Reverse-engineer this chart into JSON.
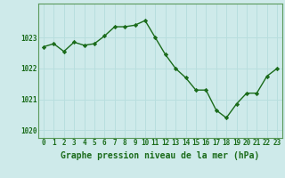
{
  "x": [
    0,
    1,
    2,
    3,
    4,
    5,
    6,
    7,
    8,
    9,
    10,
    11,
    12,
    13,
    14,
    15,
    16,
    17,
    18,
    19,
    20,
    21,
    22,
    23
  ],
  "y": [
    1022.7,
    1022.8,
    1022.55,
    1022.85,
    1022.75,
    1022.8,
    1023.05,
    1023.35,
    1023.35,
    1023.4,
    1023.55,
    1023.0,
    1022.45,
    1022.0,
    1021.7,
    1021.3,
    1021.3,
    1020.65,
    1020.4,
    1020.85,
    1021.2,
    1021.2,
    1021.75,
    1022.0
  ],
  "line_color": "#1a6b1a",
  "marker": "D",
  "marker_size": 2.2,
  "bg_color": "#ceeaea",
  "grid_color": "#b0d8d8",
  "xlabel": "Graphe pression niveau de la mer (hPa)",
  "xlabel_color": "#1a6b1a",
  "tick_color": "#1a6b1a",
  "ylim": [
    1019.75,
    1024.1
  ],
  "xlim": [
    -0.5,
    23.5
  ],
  "yticks": [
    1020,
    1021,
    1022,
    1023
  ],
  "xticks": [
    0,
    1,
    2,
    3,
    4,
    5,
    6,
    7,
    8,
    9,
    10,
    11,
    12,
    13,
    14,
    15,
    16,
    17,
    18,
    19,
    20,
    21,
    22,
    23
  ],
  "xtick_labels": [
    "0",
    "1",
    "2",
    "3",
    "4",
    "5",
    "6",
    "7",
    "8",
    "9",
    "10",
    "11",
    "12",
    "13",
    "14",
    "15",
    "16",
    "17",
    "18",
    "19",
    "20",
    "21",
    "22",
    "23"
  ],
  "tick_fontsize": 5.5,
  "xlabel_fontsize": 7,
  "line_width": 1.0,
  "border_color": "#5a9a5a"
}
